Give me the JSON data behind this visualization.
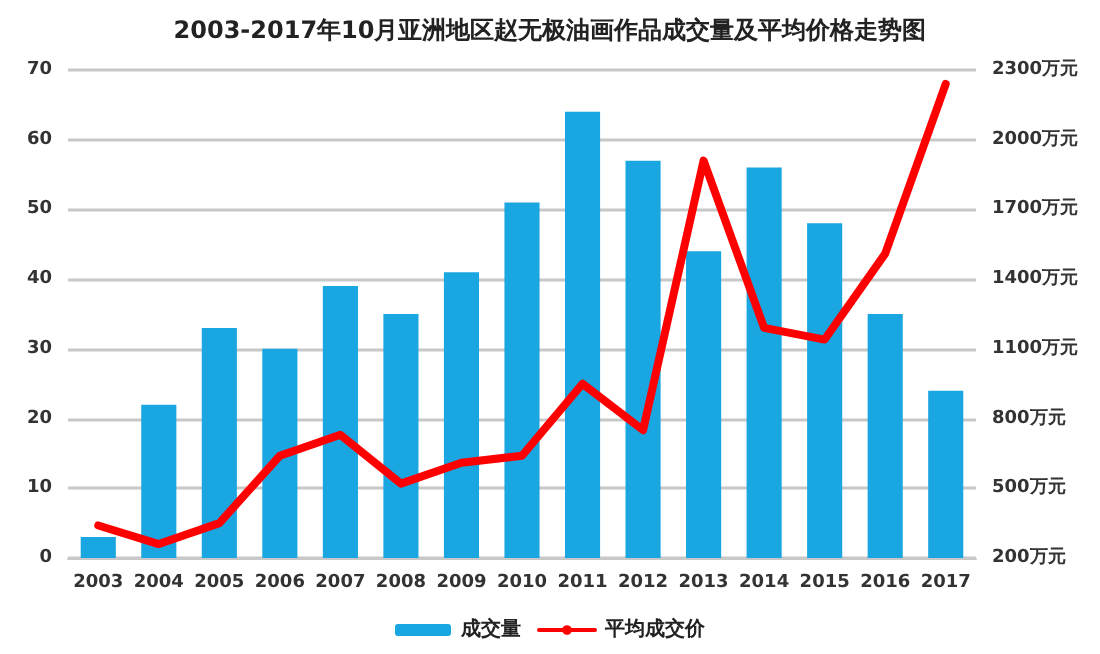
{
  "chart_data": {
    "type": "bar",
    "title": "2003-2017年10月亚洲地区赵无极油画作品成交量及平均价格走势图",
    "categories": [
      "2003",
      "2004",
      "2005",
      "2006",
      "2007",
      "2008",
      "2009",
      "2010",
      "2011",
      "2012",
      "2013",
      "2014",
      "2015",
      "2016",
      "2017"
    ],
    "series": [
      {
        "name": "成交量",
        "color": "#1aa6e0",
        "values": [
          3,
          22,
          33,
          30,
          39,
          35,
          41,
          51,
          64,
          57,
          44,
          56,
          48,
          35,
          24
        ]
      },
      {
        "name": "平均成交价",
        "type": "line",
        "axis": "y2",
        "color": "#ff0000",
        "values": [
          340,
          260,
          350,
          640,
          730,
          520,
          610,
          640,
          950,
          750,
          1910,
          1190,
          1140,
          1510,
          2240
        ]
      }
    ],
    "ylim": [
      0,
      70
    ],
    "yticks": [
      0,
      10,
      20,
      30,
      40,
      50,
      60,
      70
    ],
    "y2lim": [
      200,
      2300
    ],
    "y2ticks": [
      {
        "value": 200,
        "label": "200万元"
      },
      {
        "value": 500,
        "label": "500万元"
      },
      {
        "value": 800,
        "label": "800万元"
      },
      {
        "value": 1100,
        "label": "1100万元"
      },
      {
        "value": 1400,
        "label": "1400万元"
      },
      {
        "value": 1700,
        "label": "1700万元"
      },
      {
        "value": 2000,
        "label": "2000万元"
      },
      {
        "value": 2300,
        "label": "2300万元"
      }
    ],
    "grid": "y",
    "legend": "bottom",
    "marker": "none",
    "line_style": "solid"
  }
}
